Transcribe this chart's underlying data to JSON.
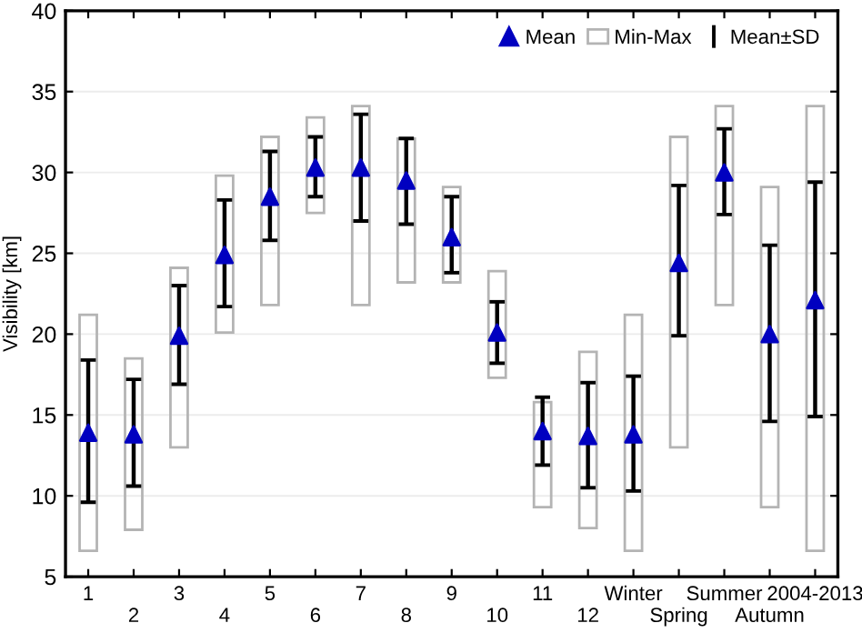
{
  "chart_data": {
    "type": "scatter",
    "ylabel": "Visibility [km]",
    "categories": [
      "1",
      "2",
      "3",
      "4",
      "5",
      "6",
      "7",
      "8",
      "9",
      "10",
      "11",
      "12",
      "Winter",
      "Spring",
      "Summer",
      "Autumn",
      "2004-2013"
    ],
    "series": [
      {
        "name": "Mean",
        "color": "#0000c0",
        "marker": "triangle",
        "values": [
          13.9,
          13.8,
          19.9,
          24.9,
          28.5,
          30.3,
          30.3,
          29.5,
          26.0,
          20.1,
          14.0,
          13.7,
          13.8,
          24.4,
          30.0,
          20.0,
          22.1
        ],
        "errors": [
          [
            9.6,
            18.4
          ],
          [
            10.6,
            17.2
          ],
          [
            16.9,
            23.0
          ],
          [
            21.7,
            28.3
          ],
          [
            25.8,
            31.3
          ],
          [
            28.5,
            32.2
          ],
          [
            27.0,
            33.6
          ],
          [
            26.8,
            32.1
          ],
          [
            23.8,
            28.5
          ],
          [
            18.2,
            22.0
          ],
          [
            11.9,
            16.1
          ],
          [
            10.5,
            17.0
          ],
          [
            10.3,
            17.4
          ],
          [
            19.9,
            29.2
          ],
          [
            27.4,
            32.7
          ],
          [
            14.6,
            25.5
          ],
          [
            14.9,
            29.4
          ]
        ]
      },
      {
        "name": "Min-Max",
        "type": "bar",
        "color": "#b4b4b4",
        "base": [
          6.6,
          7.9,
          13.0,
          20.1,
          21.8,
          27.5,
          21.8,
          23.2,
          23.2,
          17.3,
          9.3,
          8.0,
          6.6,
          13.0,
          21.8,
          9.3,
          6.6
        ],
        "values": [
          14.6,
          10.6,
          11.1,
          9.7,
          10.4,
          5.9,
          12.3,
          8.9,
          5.9,
          6.6,
          6.5,
          10.9,
          14.6,
          19.2,
          12.3,
          19.8,
          27.5
        ]
      }
    ],
    "annotations": [
      "Mean±SD"
    ],
    "ylim": [
      5,
      40
    ],
    "yticks": [
      5,
      10,
      15,
      20,
      25,
      30,
      35,
      40
    ],
    "grid": "y",
    "legend": "top right"
  }
}
